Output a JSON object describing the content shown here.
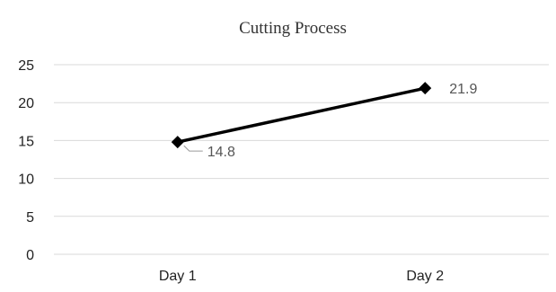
{
  "chart_data": {
    "type": "line",
    "title": "Cutting Process",
    "xlabel": "",
    "ylabel": "",
    "categories": [
      "Day 1",
      "Day 2"
    ],
    "series": [
      {
        "values": [
          14.8,
          21.9
        ],
        "data_labels": [
          "14.8",
          "21.9"
        ]
      }
    ],
    "ylim": [
      0,
      25
    ],
    "yticks": [
      "0",
      "5",
      "10",
      "15",
      "20",
      "25"
    ],
    "grid": true,
    "legend": "none",
    "marker": "diamond",
    "line_color": "#000000",
    "gridline_color": "#d9d9d9"
  }
}
